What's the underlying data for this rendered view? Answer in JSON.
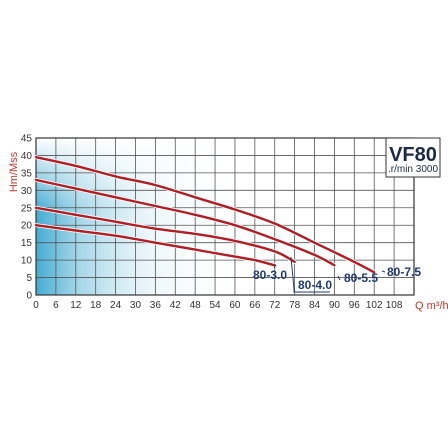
{
  "chart_data": {
    "type": "line",
    "model": "VF80",
    "speed": ".r/min 3000",
    "ylabel": "Hm/Mss",
    "xlabel": "Q m³/h",
    "xlim": [
      0,
      114
    ],
    "ylim": [
      0,
      45
    ],
    "x_ticks": [
      "0",
      "6",
      "12",
      "18",
      "24",
      "30",
      "36",
      "42",
      "48",
      "54",
      "60",
      "66",
      "72",
      "78",
      "84",
      "90",
      "96",
      "102",
      "108"
    ],
    "y_ticks": [
      "0",
      "5",
      "10",
      "15",
      "20",
      "25",
      "30",
      "35",
      "40",
      "45"
    ],
    "grid": true,
    "curve_color": "#b01e23",
    "series": [
      {
        "name": "80-3.0",
        "points": [
          [
            0,
            20
          ],
          [
            12,
            18.5
          ],
          [
            24,
            17
          ],
          [
            36,
            15
          ],
          [
            48,
            13
          ],
          [
            60,
            11
          ],
          [
            66,
            10
          ],
          [
            72,
            8.5
          ]
        ]
      },
      {
        "name": "80-4.0",
        "points": [
          [
            0,
            25
          ],
          [
            12,
            23
          ],
          [
            24,
            21
          ],
          [
            36,
            19
          ],
          [
            48,
            17.5
          ],
          [
            60,
            15.5
          ],
          [
            72,
            12.5
          ],
          [
            78,
            9.5
          ]
        ]
      },
      {
        "name": "80-5.5",
        "points": [
          [
            0,
            33
          ],
          [
            12,
            30.5
          ],
          [
            24,
            28
          ],
          [
            36,
            25.5
          ],
          [
            48,
            23
          ],
          [
            60,
            20
          ],
          [
            72,
            16
          ],
          [
            84,
            11.5
          ],
          [
            90,
            8.5
          ]
        ]
      },
      {
        "name": "80-7.5",
        "points": [
          [
            0,
            39.5
          ],
          [
            12,
            37
          ],
          [
            24,
            34
          ],
          [
            36,
            31.5
          ],
          [
            48,
            28
          ],
          [
            60,
            24.5
          ],
          [
            72,
            20.5
          ],
          [
            84,
            15
          ],
          [
            96,
            9.5
          ],
          [
            102,
            6.5
          ]
        ]
      }
    ]
  }
}
